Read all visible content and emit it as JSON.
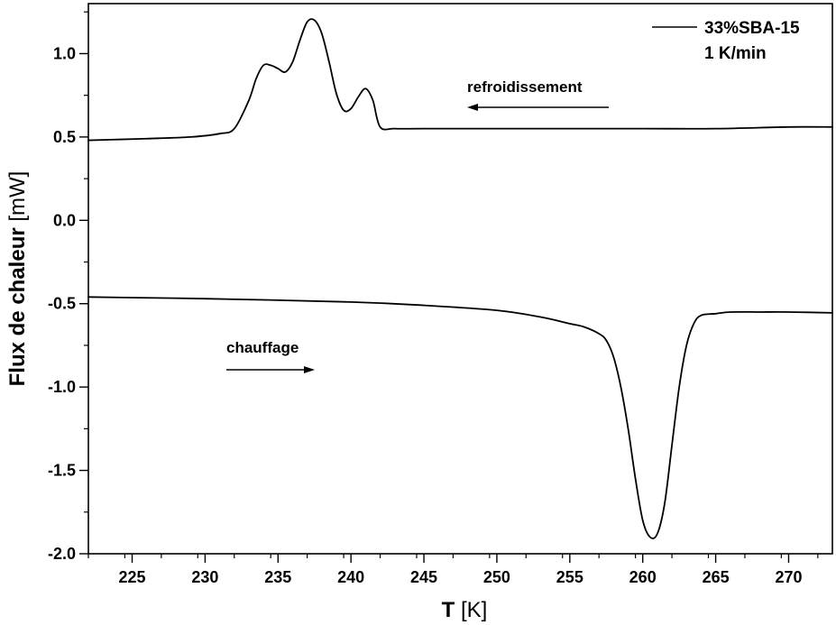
{
  "chart_data": {
    "type": "line",
    "title": "",
    "xlabel_main": "T",
    "xlabel_unit": "[K]",
    "ylabel_main": "Flux de chaleur",
    "ylabel_unit": "[mW]",
    "xlim": [
      222,
      273
    ],
    "ylim": [
      -2.0,
      1.3
    ],
    "x_ticks": [
      225,
      230,
      235,
      240,
      245,
      250,
      255,
      260,
      265,
      270
    ],
    "y_ticks": [
      -2.0,
      -1.5,
      -1.0,
      -0.5,
      0.0,
      0.5,
      1.0
    ],
    "y_tick_labels": [
      "-2.0",
      "-1.5",
      "-1.0",
      "-0.5",
      "0.0",
      "0.5",
      "1.0"
    ],
    "grid": false,
    "legend": {
      "placement": "top-right",
      "entries": [
        "33%SBA-15",
        "1 K/min"
      ]
    },
    "annotations": {
      "cooling": "refroidissement",
      "heating": "chauffage"
    },
    "colors": {
      "line": "#000000"
    },
    "series": [
      {
        "name": "refroidissement",
        "x": [
          222,
          226,
          229,
          231,
          232,
          233,
          233.5,
          234,
          234.5,
          235,
          235.5,
          236,
          236.5,
          237,
          237.5,
          238,
          238.5,
          239,
          239.5,
          240,
          240.5,
          241,
          241.5,
          242,
          243,
          245,
          250,
          255,
          260,
          265,
          270,
          273
        ],
        "y": [
          0.48,
          0.49,
          0.5,
          0.52,
          0.55,
          0.72,
          0.85,
          0.93,
          0.93,
          0.91,
          0.89,
          0.95,
          1.08,
          1.19,
          1.2,
          1.12,
          0.95,
          0.76,
          0.66,
          0.67,
          0.74,
          0.79,
          0.72,
          0.56,
          0.55,
          0.55,
          0.55,
          0.55,
          0.55,
          0.55,
          0.56,
          0.56
        ]
      },
      {
        "name": "chauffage",
        "x": [
          222,
          230,
          240,
          245,
          250,
          253,
          255,
          256,
          257,
          257.5,
          258,
          258.5,
          259,
          259.5,
          260,
          260.5,
          261,
          261.5,
          262,
          262.5,
          263,
          263.5,
          264,
          265,
          266,
          268,
          270,
          273
        ],
        "y": [
          -0.46,
          -0.47,
          -0.49,
          -0.51,
          -0.54,
          -0.58,
          -0.62,
          -0.64,
          -0.68,
          -0.72,
          -0.82,
          -1.0,
          -1.25,
          -1.55,
          -1.8,
          -1.9,
          -1.88,
          -1.7,
          -1.35,
          -1.0,
          -0.75,
          -0.62,
          -0.57,
          -0.56,
          -0.55,
          -0.55,
          -0.55,
          -0.555
        ]
      }
    ]
  }
}
